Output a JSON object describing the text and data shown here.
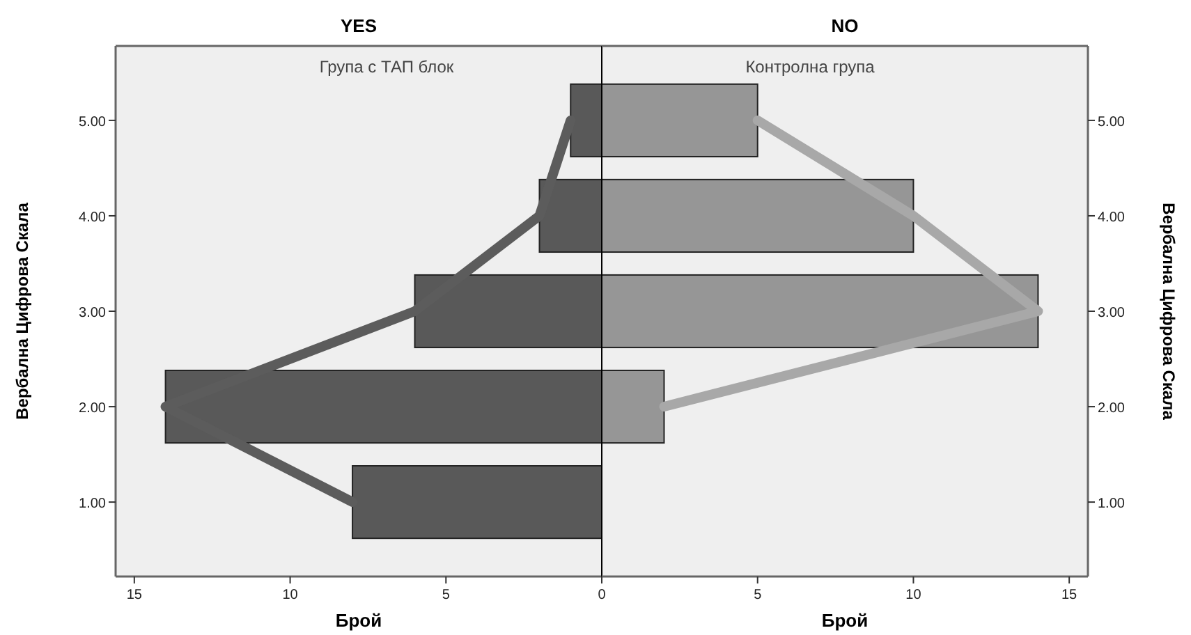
{
  "chart_data": [
    {
      "type": "bar",
      "orientation": "horizontal",
      "title": "YES",
      "xlabel": "Брой",
      "ylabel": "Вербална Цифрова Скала",
      "categories": [
        "5.00",
        "4.00",
        "3.00",
        "2.00",
        "1.00"
      ],
      "xlim": [
        15.6,
        0
      ],
      "xticks": [
        15,
        10,
        5
      ],
      "grid": false,
      "annotations": [
        "Група с ТАП блок"
      ],
      "series": [
        {
          "color": "#595959",
          "values": [
            1,
            2,
            6,
            14,
            8
          ]
        },
        {
          "type": "line",
          "color": "#5c5c5c",
          "values": [
            1,
            2,
            6,
            14,
            8
          ]
        }
      ]
    },
    {
      "type": "bar",
      "orientation": "horizontal",
      "title": "NO",
      "xlabel": "Брой",
      "ylabel": "Вербална Цифрова Скала",
      "categories": [
        "5.00",
        "4.00",
        "3.00",
        "2.00",
        "1.00"
      ],
      "xlim": [
        0,
        15.6
      ],
      "xticks": [
        0,
        5,
        10,
        15
      ],
      "grid": false,
      "annotations": [
        "Контролна група"
      ],
      "series": [
        {
          "color": "#969696",
          "values": [
            5,
            10,
            14,
            2,
            0
          ]
        },
        {
          "type": "line",
          "color": "#a8a8a8",
          "values": [
            5,
            10,
            14,
            2,
            null
          ]
        }
      ]
    }
  ]
}
